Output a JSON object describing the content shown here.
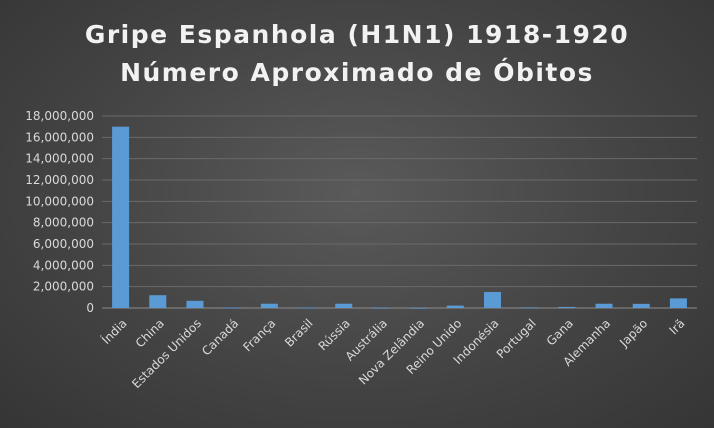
{
  "chart_data": {
    "type": "bar",
    "title_lines": [
      "Gripe Espanhola  (H1N1) 1918-1920",
      "Número  Aproximado  de Óbitos"
    ],
    "xlabel": "",
    "ylabel": "",
    "ylim": [
      0,
      18000000
    ],
    "yticks": [
      0,
      2000000,
      4000000,
      6000000,
      8000000,
      10000000,
      12000000,
      14000000,
      16000000,
      18000000
    ],
    "ytick_labels": [
      "0",
      "2,000,000",
      "4,000,000",
      "6,000,000",
      "8,000,000",
      "10,000,000",
      "12,000,000",
      "14,000,000",
      "16,000,000",
      "18,000,000"
    ],
    "grid": true,
    "legend": "none",
    "bar_color": "#5b9bd5",
    "categories": [
      "Índia",
      "China",
      "Estados Unidos",
      "Canadá",
      "França",
      "Brasil",
      "Rússia",
      "Austrália",
      "Nova Zelândia",
      "Reino Unido",
      "Indonésia",
      "Portugal",
      "Gana",
      "Alemanha",
      "Japão",
      "Irã"
    ],
    "values": [
      17000000,
      1200000,
      675000,
      50000,
      400000,
      35000,
      400000,
      15000,
      9000,
      228000,
      1500000,
      60000,
      100000,
      400000,
      390000,
      902000
    ]
  }
}
